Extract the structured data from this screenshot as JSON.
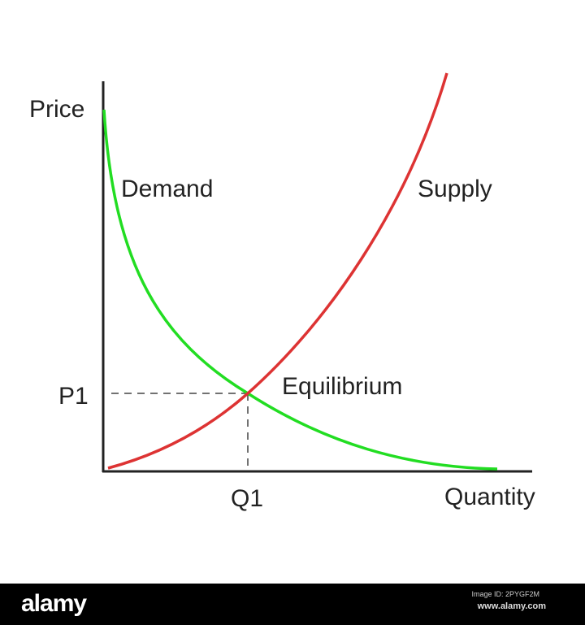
{
  "diagram": {
    "y_axis_label": "Price",
    "x_axis_label": "Quantity",
    "demand_label": "Demand",
    "supply_label": "Supply",
    "equilibrium_label": "Equilibrium",
    "price_marker": "P1",
    "quantity_marker": "Q1",
    "colors": {
      "demand": "#22dd22",
      "supply": "#dd3333",
      "axes": "#222222"
    }
  },
  "watermark": {
    "logo": "alamy",
    "image_id": "Image ID: 2PYGF2M",
    "site": "www.alamy.com"
  }
}
